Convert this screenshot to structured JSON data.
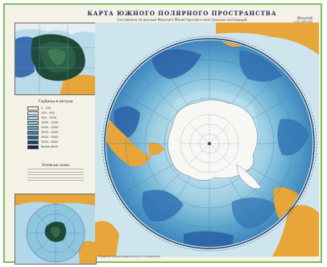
{
  "map": {
    "title": "КАРТА ЮЖНОГО ПОЛЯРНОГО ПРОСТРАНСТВА",
    "subtitle": "Составлена по данным Морского Министерства и иностранных экспедиций",
    "scale_label": "Масштаб",
    "scale_value": "1:30 000 000",
    "legend_title": "Глубины в метрах",
    "legend": [
      {
        "color": "#eef6fa",
        "label": "0 - 200"
      },
      {
        "color": "#cde6f0",
        "label": "200 - 500"
      },
      {
        "color": "#a9d3e6",
        "label": "500 - 1000"
      },
      {
        "color": "#7fbfd9",
        "label": "1000 - 2000"
      },
      {
        "color": "#56a3c9",
        "label": "2000 - 3000"
      },
      {
        "color": "#2f80b4",
        "label": "3000 - 4000"
      },
      {
        "color": "#1f5f98",
        "label": "4000 - 5000"
      },
      {
        "color": "#153f73",
        "label": "5000 - 6000"
      },
      {
        "color": "#0c2850",
        "label": "более 6000"
      }
    ],
    "notes_title": "Условные знаки",
    "footer": "Издание Гидрографического Управления"
  },
  "colors": {
    "land": "#e8a53a",
    "ice": "#f7f7f4",
    "frame": "#7fbf5a",
    "deep_sea": "#2a62a8",
    "shallow_sea": "#a4d3e6"
  }
}
